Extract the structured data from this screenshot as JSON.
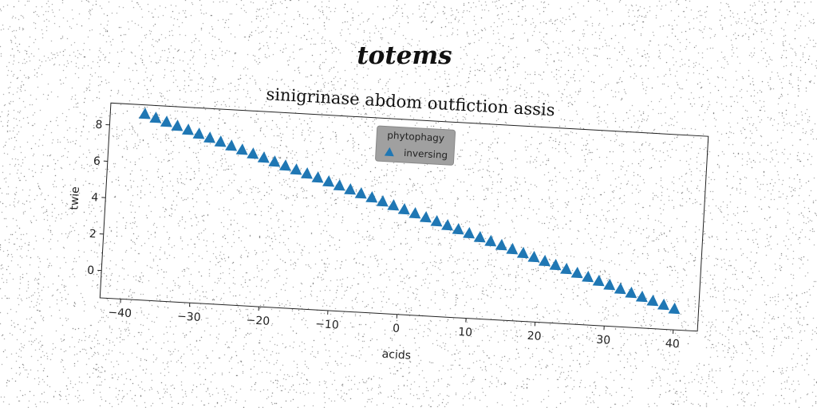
{
  "figure": {
    "suptitle": "totems"
  },
  "chart_data": {
    "type": "scatter",
    "title": "sinigrinase abdom outfiction assis",
    "xlabel": "acids",
    "ylabel": "twie",
    "xlim": [
      -43,
      43.5
    ],
    "ylim": [
      -1.5,
      9.2
    ],
    "xticks": [
      -40,
      -30,
      -20,
      -10,
      0,
      10,
      20,
      30,
      40
    ],
    "xtick_labels": [
      "−40",
      "−30",
      "−20",
      "−10",
      "0",
      "10",
      "20",
      "30",
      "40"
    ],
    "yticks": [
      0,
      2,
      4,
      6,
      8
    ],
    "ytick_labels": [
      "0",
      "2",
      "4",
      "6",
      "8"
    ],
    "grid": false,
    "legend": {
      "title": "phytophagy",
      "placement": "upper center",
      "background": "#a0a0a0"
    },
    "series": [
      {
        "name": "inversing",
        "marker": "triangle-up",
        "color": "#1f77b4",
        "x_start": -38,
        "x_end": 40,
        "x_step": 1.6,
        "y_start": 8.7,
        "y_end": -0.35
      }
    ]
  }
}
